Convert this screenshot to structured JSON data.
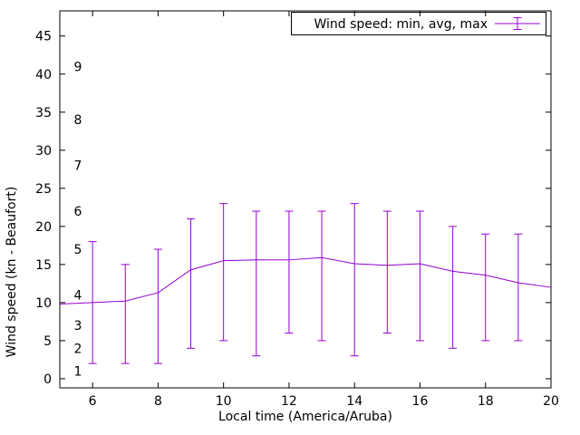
{
  "chart_data": {
    "type": "line",
    "title": "",
    "legend": [
      {
        "name": "Wind speed: min, avg, max"
      }
    ],
    "legend_position": "top-right",
    "legend_box": true,
    "xlabel": "Local time (America/Aruba)",
    "ylabel": "Wind speed (kn - Beaufort)",
    "x_range": [
      5,
      20
    ],
    "y_range": [
      -1.2,
      48.3
    ],
    "x_ticks": [
      6,
      8,
      10,
      12,
      14,
      16,
      18,
      20
    ],
    "y_ticks": [
      0,
      5,
      10,
      15,
      20,
      25,
      30,
      35,
      40,
      45
    ],
    "grid": false,
    "line_color": "#9400d3",
    "axis_color": "#000000",
    "beaufort_scale": {
      "labels": [
        "1",
        "2",
        "3",
        "4",
        "5",
        "6",
        "7",
        "8",
        "9"
      ],
      "kn_positions": [
        1,
        4,
        7,
        11,
        17,
        22,
        28,
        34,
        41
      ]
    },
    "avg_line": {
      "x": [
        5,
        6,
        7,
        8,
        9,
        10,
        11,
        12,
        13,
        14,
        15,
        16,
        17,
        18,
        19,
        20
      ],
      "y": [
        9.8,
        10,
        10.2,
        11.3,
        14.3,
        15.5,
        15.6,
        15.6,
        15.9,
        15.1,
        14.9,
        15.1,
        14.1,
        13.6,
        12.6,
        12
      ]
    },
    "error_bars": [
      {
        "x": 6,
        "min": 2,
        "avg": 10,
        "max": 18
      },
      {
        "x": 7,
        "min": 2,
        "avg": 10.2,
        "max": 15
      },
      {
        "x": 8,
        "min": 2,
        "avg": 11.3,
        "max": 17
      },
      {
        "x": 9,
        "min": 4,
        "avg": 14.3,
        "max": 21
      },
      {
        "x": 10,
        "min": 5,
        "avg": 15.5,
        "max": 23
      },
      {
        "x": 11,
        "min": 3,
        "avg": 15.6,
        "max": 22
      },
      {
        "x": 12,
        "min": 6,
        "avg": 15.6,
        "max": 22
      },
      {
        "x": 13,
        "min": 5,
        "avg": 15.9,
        "max": 22
      },
      {
        "x": 14,
        "min": 3,
        "avg": 15.1,
        "max": 23
      },
      {
        "x": 15,
        "min": 6,
        "avg": 14.9,
        "max": 22
      },
      {
        "x": 16,
        "min": 5,
        "avg": 15.1,
        "max": 22
      },
      {
        "x": 17,
        "min": 4,
        "avg": 14.1,
        "max": 20
      },
      {
        "x": 18,
        "min": 5,
        "avg": 13.6,
        "max": 19
      },
      {
        "x": 19,
        "min": 5,
        "avg": 12.6,
        "max": 19
      }
    ]
  }
}
